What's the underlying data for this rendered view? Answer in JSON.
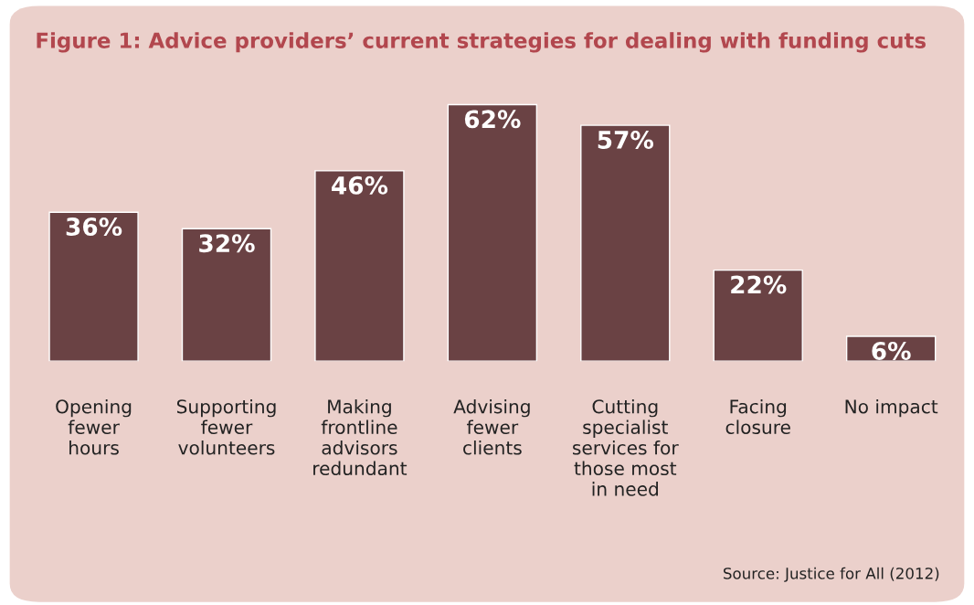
{
  "chart_data": {
    "type": "bar",
    "title": "Figure 1: Advice providers’ current strategies for dealing with funding cuts",
    "categories": [
      "Opening\nfewer\nhours",
      "Supporting\nfewer\nvolunteers",
      "Making\nfrontline\nadvisors\nredundant",
      "Advising\nfewer\nclients",
      "Cutting\nspecialist\nservices for\nthose most\nin need",
      "Facing\nclosure",
      "No impact"
    ],
    "values": [
      36,
      32,
      46,
      62,
      57,
      22,
      6
    ],
    "value_labels": [
      "36%",
      "32%",
      "46%",
      "62%",
      "57%",
      "22%",
      "6%"
    ],
    "color": "#6a4244",
    "relative": false,
    "annotations": [
      "Source: Justice for All (2012)"
    ]
  }
}
